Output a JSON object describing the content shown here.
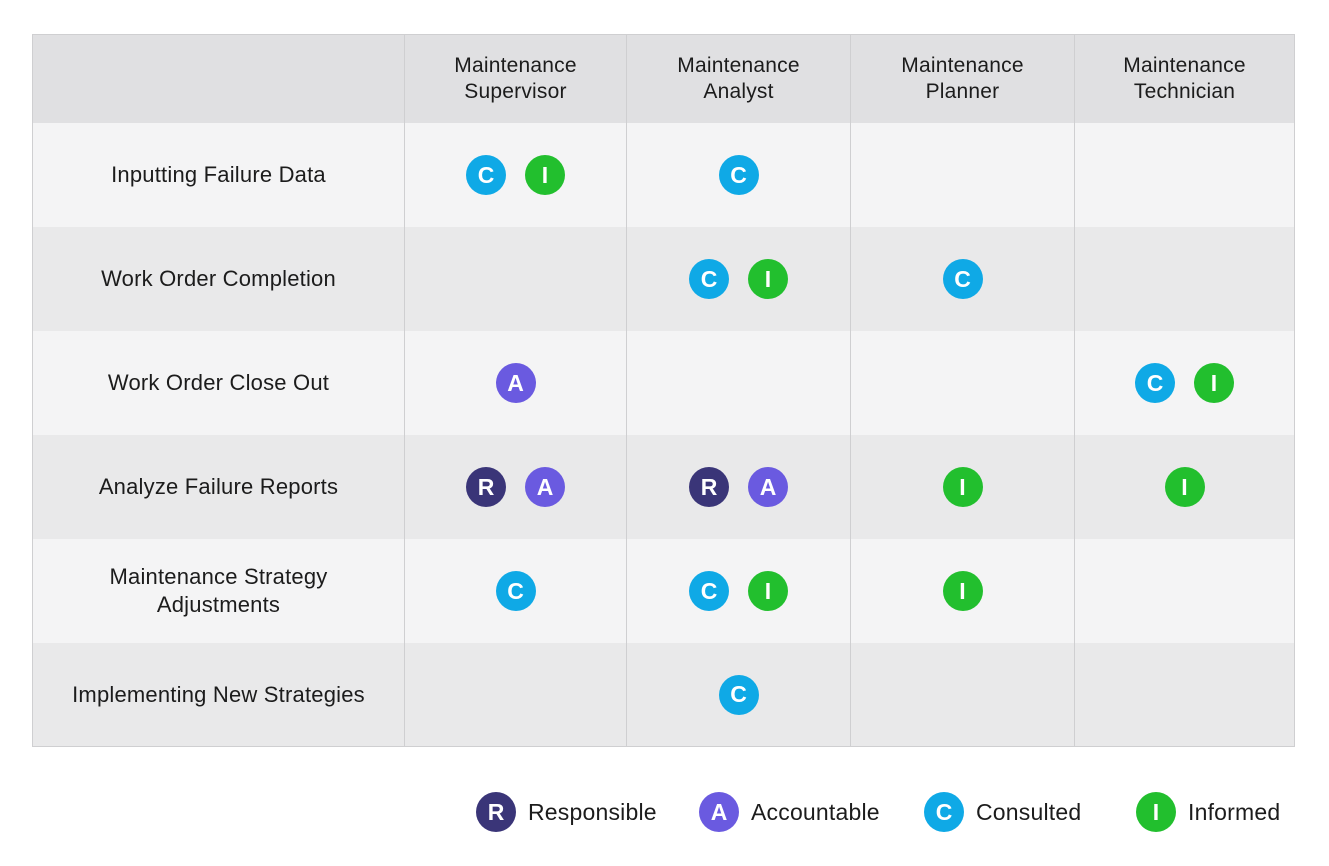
{
  "codes": {
    "R": {
      "letter": "R",
      "label": "Responsible",
      "color": "#3a3578"
    },
    "A": {
      "letter": "A",
      "label": "Accountable",
      "color": "#6a5ae0"
    },
    "C": {
      "letter": "C",
      "label": "Consulted",
      "color": "#0fa9e6"
    },
    "I": {
      "letter": "I",
      "label": "Informed",
      "color": "#22bf2e"
    }
  },
  "columns": [
    {
      "label": "Maintenance Supervisor"
    },
    {
      "label": "Maintenance Analyst"
    },
    {
      "label": "Maintenance Planner"
    },
    {
      "label": "Maintenance Technician"
    }
  ],
  "rows": [
    {
      "task": "Inputting Failure Data",
      "cells": [
        [
          "C",
          "I"
        ],
        [
          "C"
        ],
        [],
        []
      ]
    },
    {
      "task": "Work Order Completion",
      "cells": [
        [],
        [
          "C",
          "I"
        ],
        [
          "C"
        ],
        []
      ]
    },
    {
      "task": "Work Order Close Out",
      "cells": [
        [
          "A"
        ],
        [],
        [],
        [
          "C",
          "I"
        ]
      ]
    },
    {
      "task": "Analyze Failure Reports",
      "cells": [
        [
          "R",
          "A"
        ],
        [
          "R",
          "A"
        ],
        [
          "I"
        ],
        [
          "I"
        ]
      ]
    },
    {
      "task": "Maintenance Strategy Adjustments",
      "cells": [
        [
          "C"
        ],
        [
          "C",
          "I"
        ],
        [
          "I"
        ],
        []
      ]
    },
    {
      "task": "Implementing New Strategies",
      "cells": [
        [],
        [
          "C"
        ],
        [],
        []
      ]
    }
  ],
  "legend": [
    {
      "code": "R",
      "label": "Responsible"
    },
    {
      "code": "A",
      "label": "Accountable"
    },
    {
      "code": "C",
      "label": "Consulted"
    },
    {
      "code": "I",
      "label": "Informed"
    }
  ]
}
